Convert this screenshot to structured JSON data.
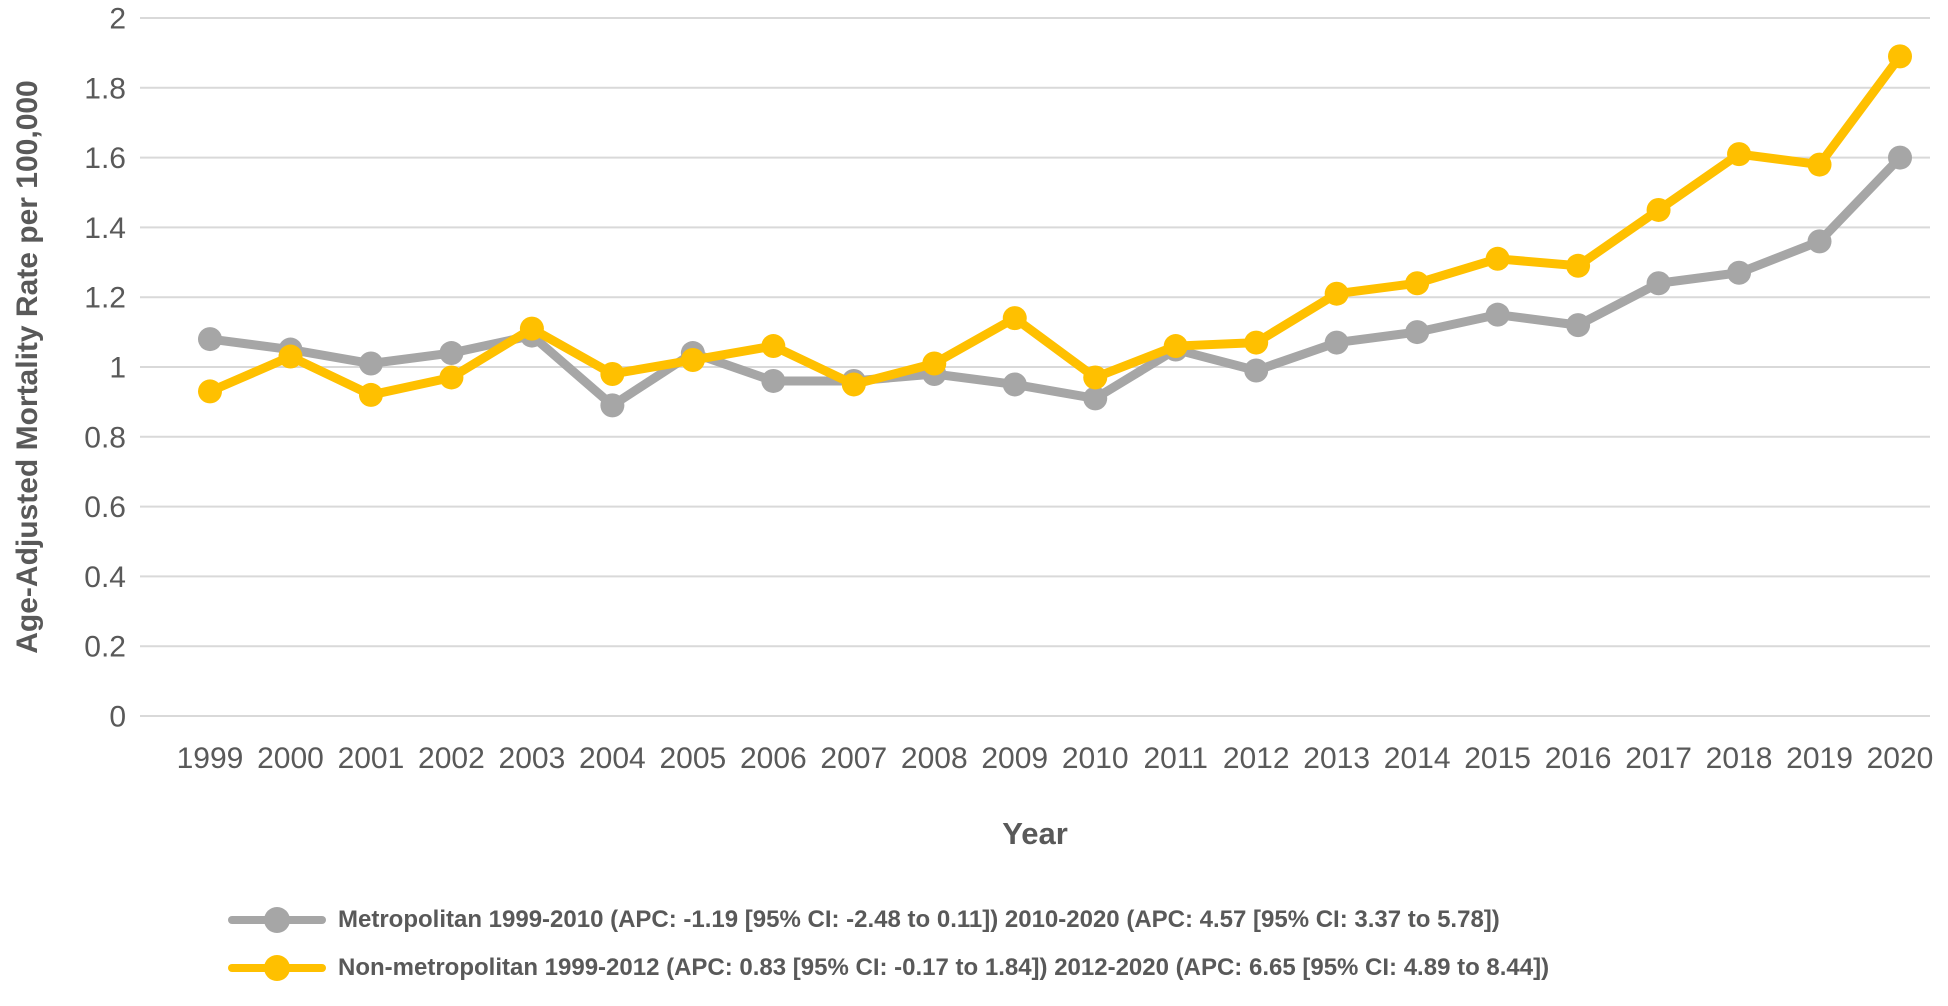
{
  "chart_data": {
    "type": "line",
    "x": [
      1999,
      2000,
      2001,
      2002,
      2003,
      2004,
      2005,
      2006,
      2007,
      2008,
      2009,
      2010,
      2011,
      2012,
      2013,
      2014,
      2015,
      2016,
      2017,
      2018,
      2019,
      2020
    ],
    "series": [
      {
        "name": "Metropolitan",
        "legend": "Metropolitan 1999-2010 (APC: -1.19 [95% CI: -2.48 to 0.11]) 2010-2020 (APC: 4.57 [95% CI: 3.37 to 5.78])",
        "color": "#A6A6A6",
        "values": [
          1.08,
          1.05,
          1.01,
          1.04,
          1.09,
          0.89,
          1.04,
          0.96,
          0.96,
          0.98,
          0.95,
          0.91,
          1.05,
          0.99,
          1.07,
          1.1,
          1.15,
          1.12,
          1.24,
          1.27,
          1.36,
          1.6
        ]
      },
      {
        "name": "Non-metropolitan",
        "legend": "Non-metropolitan 1999-2012 (APC: 0.83 [95% CI: -0.17 to 1.84]) 2012-2020 (APC: 6.65 [95% CI: 4.89 to 8.44])",
        "color": "#FFC000",
        "values": [
          0.93,
          1.03,
          0.92,
          0.97,
          1.11,
          0.98,
          1.02,
          1.06,
          0.95,
          1.01,
          1.14,
          0.97,
          1.06,
          1.07,
          1.21,
          1.24,
          1.31,
          1.29,
          1.45,
          1.61,
          1.58,
          1.89
        ]
      }
    ],
    "title": "",
    "xlabel": "Year",
    "ylabel": "Age-Adjusted Mortality Rate per 100,000",
    "ylim": [
      0,
      2
    ],
    "ytick_step": 0.2,
    "grid": "horizontal",
    "legend_position": "bottom",
    "gridline_color": "#D9D9D9",
    "text_color": "#595959"
  }
}
